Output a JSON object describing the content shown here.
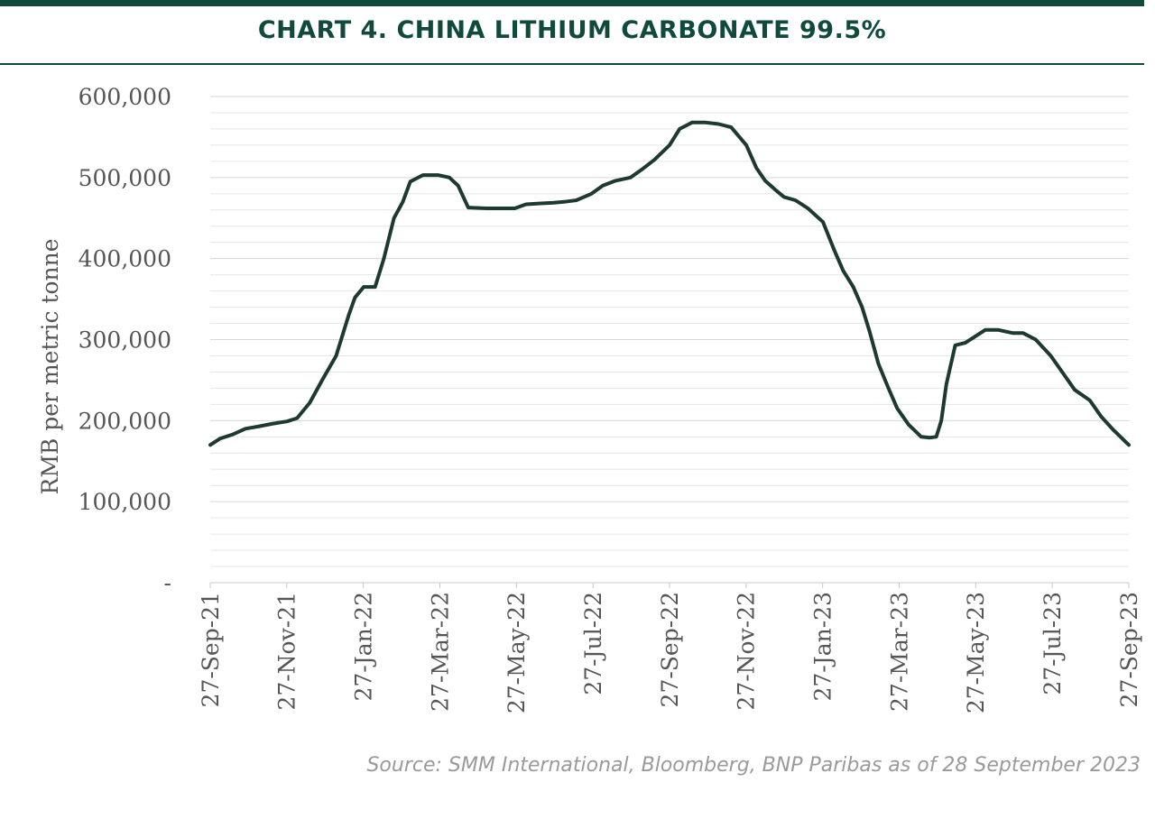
{
  "header": {
    "title": "CHART 4. CHINA LITHIUM CARBONATE 99.5%"
  },
  "footer": {
    "source": "Source: SMM International, Bloomberg, BNP Paribas as of 28 September 2023"
  },
  "colors": {
    "accent": "#0f4a3c",
    "line": "#1c3a30",
    "grid": "#e6e6e6",
    "axis_text": "#555555",
    "source_text": "#9a9a9a"
  },
  "chart_data": {
    "type": "line",
    "title": "CHART 4. CHINA LITHIUM CARBONATE 99.5%",
    "xlabel": "",
    "ylabel": "RMB per metric tonne",
    "ylim": [
      0,
      600000
    ],
    "y_ticks": [
      0,
      100000,
      200000,
      300000,
      400000,
      500000,
      600000
    ],
    "y_tick_labels": [
      "-",
      "100,000",
      "200,000",
      "300,000",
      "400,000",
      "500,000",
      "600,000"
    ],
    "x_ticks": [
      "27-Sep-21",
      "27-Nov-21",
      "27-Jan-22",
      "27-Mar-22",
      "27-May-22",
      "27-Jul-22",
      "27-Sep-22",
      "27-Nov-22",
      "27-Jan-23",
      "27-Mar-23",
      "27-May-23",
      "27-Jul-23",
      "27-Sep-23"
    ],
    "xlim": [
      "2021-09-27",
      "2023-09-27"
    ],
    "grid": true,
    "legend": "none",
    "series": [
      {
        "x": [
          "2021-09-27",
          "2021-10-05",
          "2021-10-15",
          "2021-10-25",
          "2021-11-05",
          "2021-11-15",
          "2021-11-27",
          "2021-12-05",
          "2021-12-15",
          "2021-12-25",
          "2022-01-05",
          "2022-01-15",
          "2022-01-20",
          "2022-01-27",
          "2022-02-05",
          "2022-02-12",
          "2022-02-20",
          "2022-02-27",
          "2022-03-05",
          "2022-03-15",
          "2022-03-27",
          "2022-04-05",
          "2022-04-12",
          "2022-04-20",
          "2022-05-05",
          "2022-05-27",
          "2022-06-05",
          "2022-06-15",
          "2022-06-27",
          "2022-07-05",
          "2022-07-15",
          "2022-07-27",
          "2022-08-05",
          "2022-08-15",
          "2022-08-27",
          "2022-09-05",
          "2022-09-15",
          "2022-09-27",
          "2022-10-05",
          "2022-10-15",
          "2022-10-25",
          "2022-11-05",
          "2022-11-15",
          "2022-11-27",
          "2022-12-05",
          "2022-12-12",
          "2022-12-20",
          "2022-12-27",
          "2023-01-05",
          "2023-01-15",
          "2023-01-27",
          "2023-02-05",
          "2023-02-12",
          "2023-02-20",
          "2023-02-27",
          "2023-03-05",
          "2023-03-12",
          "2023-03-20",
          "2023-03-27",
          "2023-04-05",
          "2023-04-15",
          "2023-04-22",
          "2023-04-27",
          "2023-05-01",
          "2023-05-05",
          "2023-05-12",
          "2023-05-20",
          "2023-05-27",
          "2023-06-05",
          "2023-06-15",
          "2023-06-27",
          "2023-07-05",
          "2023-07-15",
          "2023-07-27",
          "2023-08-05",
          "2023-08-15",
          "2023-08-27",
          "2023-09-05",
          "2023-09-15",
          "2023-09-27"
        ],
        "y": [
          170000,
          178000,
          183000,
          190000,
          193000,
          196000,
          199000,
          203000,
          222000,
          250000,
          280000,
          330000,
          352000,
          365000,
          365000,
          400000,
          450000,
          470000,
          495000,
          503000,
          503000,
          500000,
          490000,
          463000,
          462000,
          462000,
          467000,
          468000,
          469000,
          470000,
          472000,
          480000,
          490000,
          496000,
          500000,
          510000,
          522000,
          540000,
          560000,
          568000,
          568000,
          566000,
          562000,
          540000,
          512000,
          496000,
          485000,
          476000,
          472000,
          462000,
          445000,
          410000,
          385000,
          365000,
          340000,
          310000,
          270000,
          240000,
          215000,
          195000,
          180000,
          179000,
          180000,
          200000,
          245000,
          293000,
          296000,
          303000,
          312000,
          312000,
          308000,
          308000,
          300000,
          280000,
          260000,
          238000,
          225000,
          205000,
          188000,
          170000
        ]
      }
    ]
  }
}
